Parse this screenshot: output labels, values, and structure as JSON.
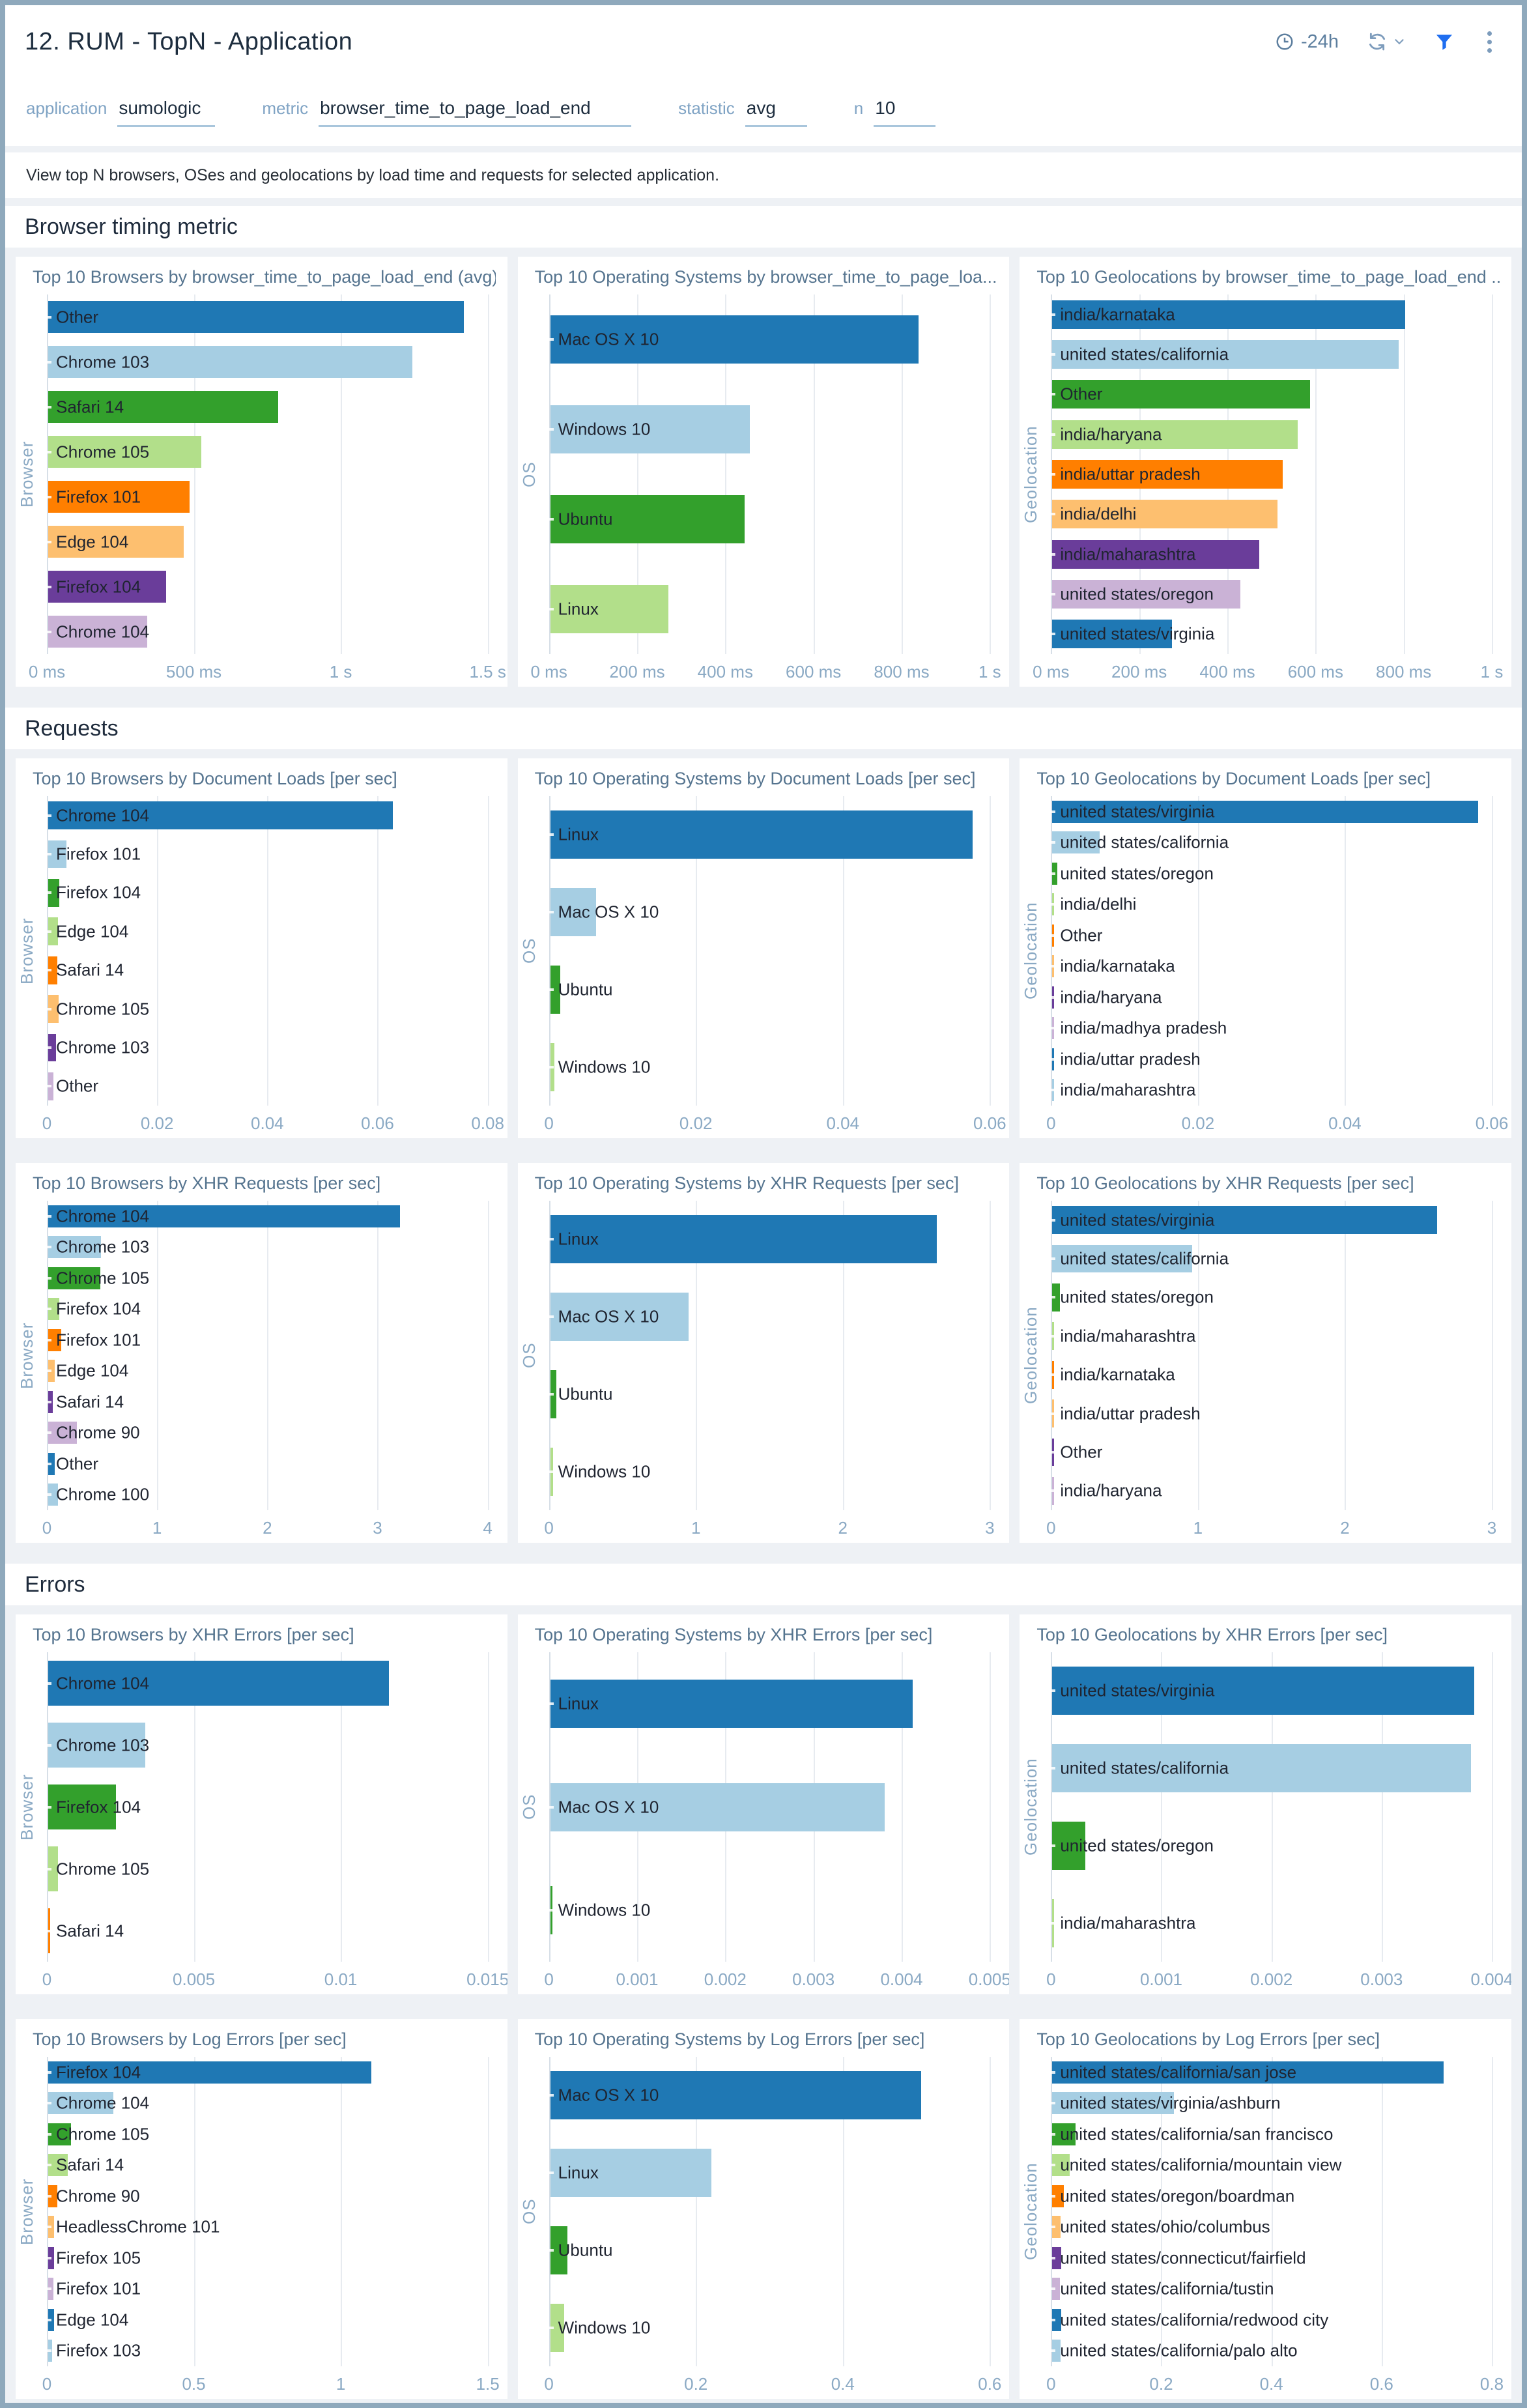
{
  "header": {
    "title": "12. RUM - TopN - Application",
    "time_range": "-24h"
  },
  "icons": [
    "clock-icon",
    "refresh-icon",
    "chevron-down-icon",
    "filter-funnel-icon",
    "kebab-menu-icon"
  ],
  "filters": [
    {
      "label": "application",
      "value": "sumologic"
    },
    {
      "label": "metric",
      "value": "browser_time_to_page_load_end"
    },
    {
      "label": "statistic",
      "value": "avg"
    },
    {
      "label": "n",
      "value": "10"
    }
  ],
  "description": "View top N browsers, OSes and geolocations by load time and requests for selected application.",
  "palette": [
    "#1f78b4",
    "#a6cee3",
    "#33a02c",
    "#b2df8a",
    "#ff7f00",
    "#fdbf6f",
    "#6a3d9a",
    "#cab2d6"
  ],
  "colors": {
    "frame": "#8fa9bc",
    "accent_blue": "#1f6ef0",
    "panel_title": "#55748f",
    "axis_text": "#8aa9c4",
    "page_bg": "#eef1f5"
  },
  "sections": [
    {
      "title": "Browser timing metric",
      "charts": [
        {
          "type": "bar",
          "title": "Top 10 Browsers by browser_time_to_page_load_end (avg)",
          "ylabel": "Browser",
          "tick_labels": [
            "0 ms",
            "500 ms",
            "1 s",
            "1.5 s"
          ],
          "tick_values": [
            0,
            500,
            1000,
            1500
          ],
          "xmax": 1500,
          "bars": [
            {
              "label": "Other",
              "value": 1415
            },
            {
              "label": "Chrome 103",
              "value": 1240
            },
            {
              "label": "Safari 14",
              "value": 782
            },
            {
              "label": "Chrome 105",
              "value": 520
            },
            {
              "label": "Firefox 101",
              "value": 481
            },
            {
              "label": "Edge 104",
              "value": 460
            },
            {
              "label": "Firefox 104",
              "value": 402
            },
            {
              "label": "Chrome 104",
              "value": 338
            }
          ]
        },
        {
          "type": "bar",
          "title": "Top 10 Operating Systems by browser_time_to_page_loa...",
          "ylabel": "OS",
          "tick_labels": [
            "0 ms",
            "200 ms",
            "400 ms",
            "600 ms",
            "800 ms",
            "1 s"
          ],
          "tick_values": [
            0,
            200,
            400,
            600,
            800,
            1000
          ],
          "xmax": 1000,
          "bars": [
            {
              "label": "Mac OS X 10",
              "value": 835
            },
            {
              "label": "Windows 10",
              "value": 453
            },
            {
              "label": "Ubuntu",
              "value": 441
            },
            {
              "label": "Linux",
              "value": 268
            }
          ]
        },
        {
          "type": "bar",
          "title": "Top 10 Geolocations by browser_time_to_page_load_end ...",
          "ylabel": "Geolocation",
          "tick_labels": [
            "0 ms",
            "200 ms",
            "400 ms",
            "600 ms",
            "800 ms",
            "1 s"
          ],
          "tick_values": [
            0,
            200,
            400,
            600,
            800,
            1000
          ],
          "xmax": 1000,
          "bars": [
            {
              "label": "india/karnataka",
              "value": 800
            },
            {
              "label": "united states/california",
              "value": 785
            },
            {
              "label": "Other",
              "value": 584
            },
            {
              "label": "india/haryana",
              "value": 557
            },
            {
              "label": "india/uttar pradesh",
              "value": 523
            },
            {
              "label": "india/delhi",
              "value": 511
            },
            {
              "label": "india/maharashtra",
              "value": 469
            },
            {
              "label": "united states/oregon",
              "value": 427
            },
            {
              "label": "united states/virginia",
              "value": 271
            }
          ]
        }
      ]
    },
    {
      "title": "Requests",
      "charts": [
        {
          "type": "bar",
          "title": "Top 10 Browsers by Document Loads [per sec]",
          "ylabel": "Browser",
          "tick_labels": [
            "0",
            "0.02",
            "0.04",
            "0.06",
            "0.08"
          ],
          "tick_values": [
            0,
            0.02,
            0.04,
            0.06,
            0.08
          ],
          "xmax": 0.08,
          "bars": [
            {
              "label": "Chrome 104",
              "value": 0.0626
            },
            {
              "label": "Firefox 101",
              "value": 0.0033
            },
            {
              "label": "Firefox 104",
              "value": 0.002
            },
            {
              "label": "Edge 104",
              "value": 0.0018
            },
            {
              "label": "Safari 14",
              "value": 0.0016
            },
            {
              "label": "Chrome 105",
              "value": 0.0019
            },
            {
              "label": "Chrome 103",
              "value": 0.0014
            },
            {
              "label": "Other",
              "value": 0.0009
            }
          ]
        },
        {
          "type": "bar",
          "title": "Top 10 Operating Systems by Document Loads [per sec]",
          "ylabel": "OS",
          "tick_labels": [
            "0",
            "0.02",
            "0.04",
            "0.06"
          ],
          "tick_values": [
            0,
            0.02,
            0.04,
            0.06
          ],
          "xmax": 0.06,
          "bars": [
            {
              "label": "Linux",
              "value": 0.0575
            },
            {
              "label": "Mac OS X 10",
              "value": 0.0062
            },
            {
              "label": "Ubuntu",
              "value": 0.0014
            },
            {
              "label": "Windows 10",
              "value": 0.0006
            }
          ]
        },
        {
          "type": "bar",
          "title": "Top 10 Geolocations by Document Loads [per sec]",
          "ylabel": "Geolocation",
          "tick_labels": [
            "0",
            "0.02",
            "0.04",
            "0.06"
          ],
          "tick_values": [
            0,
            0.02,
            0.04,
            0.06
          ],
          "xmax": 0.06,
          "bars": [
            {
              "label": "united states/virginia",
              "value": 0.058
            },
            {
              "label": "united states/california",
              "value": 0.0064
            },
            {
              "label": "united states/oregon",
              "value": 0.0007
            },
            {
              "label": "india/delhi",
              "value": 0.0002
            },
            {
              "label": "Other",
              "value": 0.0002
            },
            {
              "label": "india/karnataka",
              "value": 0.00015
            },
            {
              "label": "india/haryana",
              "value": 0.00012
            },
            {
              "label": "india/madhya pradesh",
              "value": 0.0001
            },
            {
              "label": "india/uttar pradesh",
              "value": 0.0001
            },
            {
              "label": "india/maharashtra",
              "value": 0.0001
            }
          ]
        },
        {
          "type": "bar",
          "title": "Top 10 Browsers by XHR Requests [per sec]",
          "ylabel": "Browser",
          "tick_labels": [
            "0",
            "1",
            "2",
            "3",
            "4"
          ],
          "tick_values": [
            0,
            1,
            2,
            3,
            4
          ],
          "xmax": 4,
          "bars": [
            {
              "label": "Chrome 104",
              "value": 3.19
            },
            {
              "label": "Chrome 103",
              "value": 0.48
            },
            {
              "label": "Chrome 105",
              "value": 0.47
            },
            {
              "label": "Firefox 104",
              "value": 0.1
            },
            {
              "label": "Firefox 101",
              "value": 0.12
            },
            {
              "label": "Edge 104",
              "value": 0.06
            },
            {
              "label": "Safari 14",
              "value": 0.04
            },
            {
              "label": "Chrome 90",
              "value": 0.26
            },
            {
              "label": "Other",
              "value": 0.06
            },
            {
              "label": "Chrome 100",
              "value": 0.09
            }
          ]
        },
        {
          "type": "bar",
          "title": "Top 10 Operating Systems by XHR Requests [per sec]",
          "ylabel": "OS",
          "tick_labels": [
            "0",
            "1",
            "2",
            "3"
          ],
          "tick_values": [
            0,
            1,
            2,
            3
          ],
          "xmax": 3,
          "bars": [
            {
              "label": "Linux",
              "value": 2.63
            },
            {
              "label": "Mac OS X 10",
              "value": 0.94
            },
            {
              "label": "Ubuntu",
              "value": 0.04
            },
            {
              "label": "Windows 10",
              "value": 0.02
            }
          ]
        },
        {
          "type": "bar",
          "title": "Top 10 Geolocations by XHR Requests [per sec]",
          "ylabel": "Geolocation",
          "tick_labels": [
            "0",
            "1",
            "2",
            "3"
          ],
          "tick_values": [
            0,
            1,
            2,
            3
          ],
          "xmax": 3,
          "bars": [
            {
              "label": "united states/virginia",
              "value": 2.62
            },
            {
              "label": "united states/california",
              "value": 0.95
            },
            {
              "label": "united states/oregon",
              "value": 0.05
            },
            {
              "label": "india/maharashtra",
              "value": 0.008
            },
            {
              "label": "india/karnataka",
              "value": 0.006
            },
            {
              "label": "india/uttar pradesh",
              "value": 0.005
            },
            {
              "label": "Other",
              "value": 0.004
            },
            {
              "label": "india/haryana",
              "value": 0.003
            }
          ]
        }
      ]
    },
    {
      "title": "Errors",
      "charts": [
        {
          "type": "bar",
          "title": "Top 10 Browsers by XHR Errors [per sec]",
          "ylabel": "Browser",
          "tick_labels": [
            "0",
            "0.005",
            "0.01",
            "0.015"
          ],
          "tick_values": [
            0,
            0.005,
            0.01,
            0.015
          ],
          "xmax": 0.015,
          "bars": [
            {
              "label": "Chrome 104",
              "value": 0.0116
            },
            {
              "label": "Chrome 103",
              "value": 0.0033
            },
            {
              "label": "Firefox 104",
              "value": 0.0023
            },
            {
              "label": "Chrome 105",
              "value": 0.00034
            },
            {
              "label": "Safari 14",
              "value": 6e-05
            }
          ]
        },
        {
          "type": "bar",
          "title": "Top 10 Operating Systems by XHR Errors [per sec]",
          "ylabel": "OS",
          "tick_labels": [
            "0",
            "0.001",
            "0.002",
            "0.003",
            "0.004",
            "0.005"
          ],
          "tick_values": [
            0,
            0.001,
            0.002,
            0.003,
            0.004,
            0.005
          ],
          "xmax": 0.005,
          "bars": [
            {
              "label": "Linux",
              "value": 0.00411
            },
            {
              "label": "Mac OS X 10",
              "value": 0.00379
            },
            {
              "label": "Windows 10",
              "value": 2e-05
            }
          ]
        },
        {
          "type": "bar",
          "title": "Top 10 Geolocations by XHR Errors [per sec]",
          "ylabel": "Geolocation",
          "tick_labels": [
            "0",
            "0.001",
            "0.002",
            "0.003",
            "0.004"
          ],
          "tick_values": [
            0,
            0.001,
            0.002,
            0.003,
            0.004
          ],
          "xmax": 0.004,
          "bars": [
            {
              "label": "united states/virginia",
              "value": 0.00383
            },
            {
              "label": "united states/california",
              "value": 0.0038
            },
            {
              "label": "united states/oregon",
              "value": 0.0003
            },
            {
              "label": "india/maharashtra",
              "value": 1e-05
            }
          ]
        },
        {
          "type": "bar",
          "title": "Top 10 Browsers by Log Errors [per sec]",
          "ylabel": "Browser",
          "tick_labels": [
            "0",
            "0.5",
            "1",
            "1.5"
          ],
          "tick_values": [
            0,
            0.5,
            1,
            1.5
          ],
          "xmax": 1.5,
          "bars": [
            {
              "label": "Firefox 104",
              "value": 1.1
            },
            {
              "label": "Chrome 104",
              "value": 0.221
            },
            {
              "label": "Chrome 105",
              "value": 0.077
            },
            {
              "label": "Safari 14",
              "value": 0.066
            },
            {
              "label": "Chrome 90",
              "value": 0.032
            },
            {
              "label": "HeadlessChrome 101",
              "value": 0.021
            },
            {
              "label": "Firefox 105",
              "value": 0.02
            },
            {
              "label": "Firefox 101",
              "value": 0.017
            },
            {
              "label": "Edge 104",
              "value": 0.02
            },
            {
              "label": "Firefox 103",
              "value": 0.014
            }
          ]
        },
        {
          "type": "bar",
          "title": "Top 10 Operating Systems by Log Errors [per sec]",
          "ylabel": "OS",
          "tick_labels": [
            "0",
            "0.2",
            "0.4",
            "0.6"
          ],
          "tick_values": [
            0,
            0.2,
            0.4,
            0.6
          ],
          "xmax": 0.6,
          "bars": [
            {
              "label": "Mac OS X 10",
              "value": 0.505
            },
            {
              "label": "Linux",
              "value": 0.219
            },
            {
              "label": "Ubuntu",
              "value": 0.023
            },
            {
              "label": "Windows 10",
              "value": 0.019
            }
          ]
        },
        {
          "type": "bar",
          "title": "Top 10 Geolocations by Log Errors [per sec]",
          "ylabel": "Geolocation",
          "tick_labels": [
            "0",
            "0.2",
            "0.4",
            "0.6",
            "0.8"
          ],
          "tick_values": [
            0,
            0.2,
            0.4,
            0.6,
            0.8
          ],
          "xmax": 0.8,
          "bars": [
            {
              "label": "united states/california/san jose",
              "value": 0.71
            },
            {
              "label": "united states/virginia/ashburn",
              "value": 0.221
            },
            {
              "label": "united states/california/san francisco",
              "value": 0.042
            },
            {
              "label": "united states/california/mountain view",
              "value": 0.032
            },
            {
              "label": "united states/oregon/boardman",
              "value": 0.021
            },
            {
              "label": "united states/ohio/columbus",
              "value": 0.015
            },
            {
              "label": "united states/connecticut/fairfield",
              "value": 0.016
            },
            {
              "label": "united states/california/tustin",
              "value": 0.014
            },
            {
              "label": "united states/california/redwood city",
              "value": 0.016
            },
            {
              "label": "united states/california/palo alto",
              "value": 0.015
            }
          ]
        }
      ]
    }
  ]
}
